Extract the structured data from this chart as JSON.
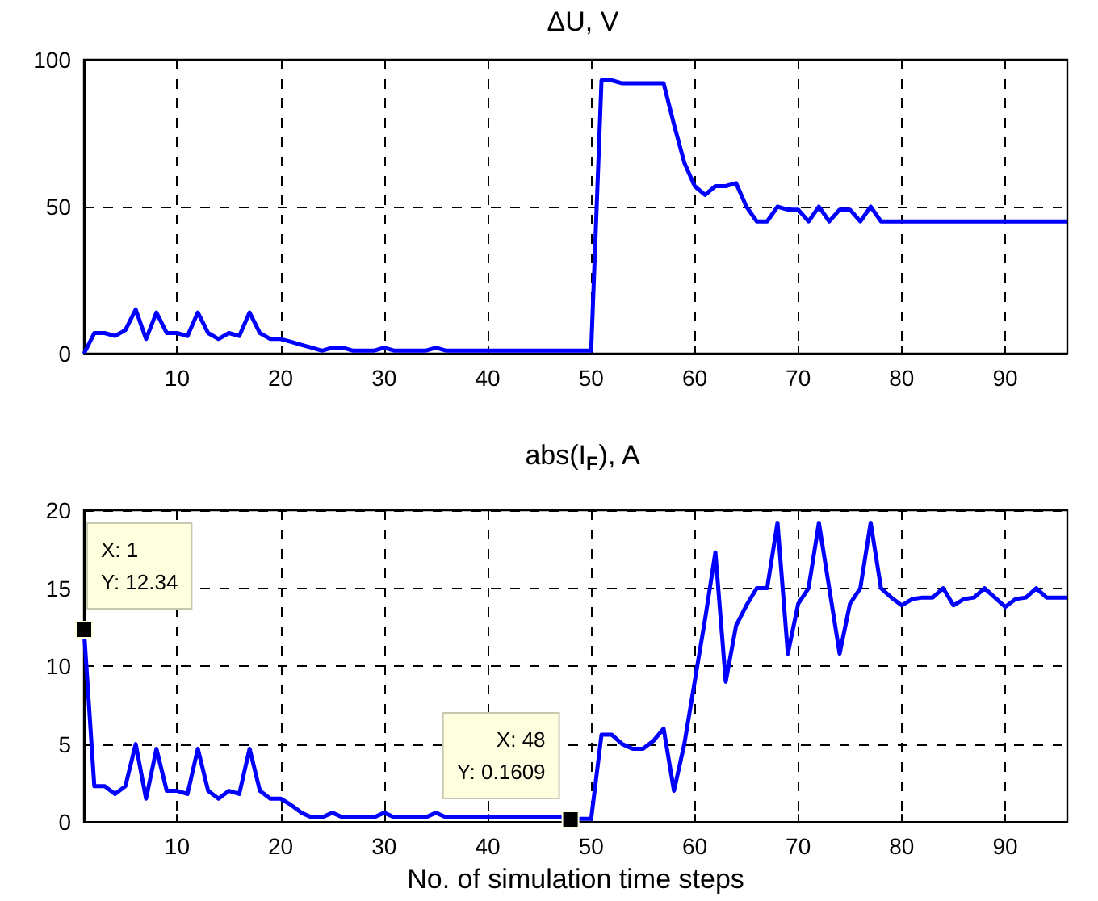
{
  "chart_data": [
    {
      "type": "line",
      "title": "ΔU, V",
      "x": [
        1,
        2,
        3,
        4,
        5,
        6,
        7,
        8,
        9,
        10,
        11,
        12,
        13,
        14,
        15,
        16,
        17,
        18,
        19,
        20,
        21,
        22,
        23,
        24,
        25,
        26,
        27,
        28,
        29,
        30,
        31,
        32,
        33,
        34,
        35,
        36,
        37,
        38,
        39,
        40,
        41,
        42,
        43,
        44,
        45,
        46,
        47,
        48,
        49,
        50,
        51,
        52,
        53,
        54,
        55,
        56,
        57,
        58,
        59,
        60,
        61,
        62,
        63,
        64,
        65,
        66,
        67,
        68,
        69,
        70,
        71,
        72,
        73,
        74,
        75,
        76,
        77,
        78,
        79,
        80,
        81,
        82,
        83,
        84,
        85,
        86,
        87,
        88,
        89,
        90,
        91,
        92,
        93,
        94,
        95,
        96
      ],
      "series": [
        {
          "color": "#0000ff",
          "values": [
            0,
            7,
            7,
            6,
            8,
            15,
            5,
            14,
            7,
            7,
            6,
            14,
            7,
            5,
            7,
            6,
            14,
            7,
            5,
            5,
            4,
            3,
            2,
            1,
            2,
            2,
            1,
            1,
            1,
            2,
            1,
            1,
            1,
            1,
            2,
            1,
            1,
            1,
            1,
            1,
            1,
            1,
            1,
            1,
            1,
            1,
            1,
            1,
            1,
            1,
            93,
            93,
            92,
            92,
            92,
            92,
            92,
            78,
            65,
            57,
            54,
            57,
            57,
            58,
            50,
            45,
            45,
            50,
            49,
            49,
            45,
            50,
            45,
            49,
            49,
            45,
            50,
            45,
            45,
            45,
            45,
            45,
            45,
            45,
            45,
            45,
            45,
            45,
            45,
            45,
            45,
            45,
            45,
            45,
            45,
            45
          ]
        }
      ],
      "xlim": [
        1,
        96
      ],
      "xticks": [
        10,
        20,
        30,
        40,
        50,
        60,
        70,
        80,
        90
      ],
      "ylim": [
        0,
        100
      ],
      "yticks": [
        0,
        50,
        100
      ],
      "grid": true,
      "marker": "none",
      "line_style": "solid"
    },
    {
      "type": "line",
      "title": "abs(I$_{F}$), A",
      "xlabel": "No. of simulation time steps",
      "x": [
        1,
        2,
        3,
        4,
        5,
        6,
        7,
        8,
        9,
        10,
        11,
        12,
        13,
        14,
        15,
        16,
        17,
        18,
        19,
        20,
        21,
        22,
        23,
        24,
        25,
        26,
        27,
        28,
        29,
        30,
        31,
        32,
        33,
        34,
        35,
        36,
        37,
        38,
        39,
        40,
        41,
        42,
        43,
        44,
        45,
        46,
        47,
        48,
        49,
        50,
        51,
        52,
        53,
        54,
        55,
        56,
        57,
        58,
        59,
        60,
        61,
        62,
        63,
        64,
        65,
        66,
        67,
        68,
        69,
        70,
        71,
        72,
        73,
        74,
        75,
        76,
        77,
        78,
        79,
        80,
        81,
        82,
        83,
        84,
        85,
        86,
        87,
        88,
        89,
        90,
        91,
        92,
        93,
        94,
        95,
        96
      ],
      "series": [
        {
          "color": "#0000ff",
          "values": [
            12.34,
            2.3,
            2.3,
            1.8,
            2.3,
            5,
            1.5,
            4.7,
            2,
            2,
            1.8,
            4.7,
            2,
            1.5,
            2,
            1.8,
            4.7,
            2,
            1.5,
            1.5,
            1.1,
            0.6,
            0.3,
            0.3,
            0.6,
            0.3,
            0.3,
            0.3,
            0.3,
            0.6,
            0.3,
            0.3,
            0.3,
            0.3,
            0.6,
            0.3,
            0.3,
            0.3,
            0.3,
            0.3,
            0.3,
            0.3,
            0.3,
            0.3,
            0.3,
            0.3,
            0.3,
            0.1609,
            0.2,
            0.2,
            5.6,
            5.6,
            5,
            4.7,
            4.7,
            5.2,
            6,
            2,
            5,
            9,
            13,
            17.3,
            9,
            12.6,
            13.9,
            15,
            15,
            19.2,
            10.8,
            14,
            15,
            19.2,
            15,
            10.8,
            14,
            15,
            19.2,
            15,
            14.4,
            13.9,
            14.3,
            14.4,
            14.4,
            15,
            13.9,
            14.3,
            14.4,
            15,
            14.4,
            13.8,
            14.3,
            14.4,
            15,
            14.4,
            14.4,
            14.4
          ]
        }
      ],
      "xlim": [
        1,
        96
      ],
      "xticks": [
        10,
        20,
        30,
        40,
        50,
        60,
        70,
        80,
        90
      ],
      "ylim": [
        0,
        20
      ],
      "yticks": [
        0,
        5,
        10,
        15,
        20
      ],
      "grid": true,
      "marker": "none",
      "line_style": "solid",
      "annotations": [
        {
          "text": "X: 1\nY: 12.34",
          "x": 1,
          "y": 12.34
        },
        {
          "text": "X: 48\nY: 0.1609",
          "x": 48,
          "y": 0.1609
        }
      ]
    }
  ]
}
